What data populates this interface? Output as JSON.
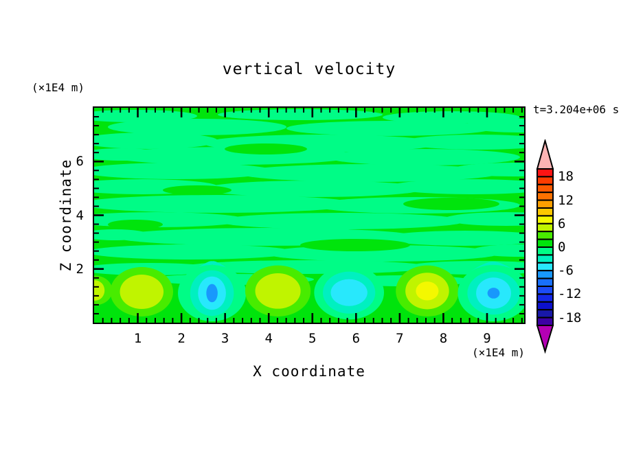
{
  "title": "vertical velocity",
  "annotations": {
    "time_label": "t=3.204e+06 s"
  },
  "x_axis": {
    "label": "X coordinate",
    "unit": "(×1E4 m)",
    "tick_labels": [
      "1",
      "2",
      "3",
      "4",
      "5",
      "6",
      "7",
      "8",
      "9"
    ]
  },
  "y_axis": {
    "label": "Z coordinate",
    "unit": "(×1E4 m)",
    "tick_labels": [
      "6",
      "4",
      "2"
    ]
  },
  "colorbar": {
    "tick_labels": [
      "18",
      "12",
      "6",
      "0",
      "-6",
      "-12",
      "-18"
    ],
    "over_color": "#fcb4b4",
    "under_color": "#b400b4",
    "cells": [
      {
        "from": 18,
        "to": 20,
        "color": "#fc1414"
      },
      {
        "from": 16,
        "to": 18,
        "color": "#fc3c00"
      },
      {
        "from": 14,
        "to": 16,
        "color": "#fc5a00"
      },
      {
        "from": 12,
        "to": 14,
        "color": "#fc7200"
      },
      {
        "from": 10,
        "to": 12,
        "color": "#fca000"
      },
      {
        "from": 8,
        "to": 10,
        "color": "#fcc800"
      },
      {
        "from": 6,
        "to": 8,
        "color": "#f4f800"
      },
      {
        "from": 4,
        "to": 6,
        "color": "#c0f400"
      },
      {
        "from": 2,
        "to": 4,
        "color": "#48ec00"
      },
      {
        "from": 0,
        "to": 2,
        "color": "#00e40c"
      },
      {
        "from": -2,
        "to": 0,
        "color": "#00fc86"
      },
      {
        "from": -4,
        "to": -2,
        "color": "#00f0c0"
      },
      {
        "from": -6,
        "to": -4,
        "color": "#28e8fc"
      },
      {
        "from": -8,
        "to": -6,
        "color": "#1898fc"
      },
      {
        "from": -10,
        "to": -8,
        "color": "#1870fc"
      },
      {
        "from": -12,
        "to": -10,
        "color": "#1c4cf8"
      },
      {
        "from": -14,
        "to": -12,
        "color": "#1428e8"
      },
      {
        "from": -16,
        "to": -14,
        "color": "#0c10cc"
      },
      {
        "from": -18,
        "to": -16,
        "color": "#1818a8"
      },
      {
        "from": -20,
        "to": -18,
        "color": "#3c00a4"
      }
    ]
  },
  "chart_data": {
    "type": "heatmap",
    "title": "vertical velocity",
    "xlabel": "X coordinate",
    "ylabel": "Z coordinate",
    "x_unit": "×1E4 m",
    "z_unit": "×1E4 m",
    "time_annotation": "t=3.204e+06 s",
    "x_range": [
      0,
      9.85
    ],
    "z_range": [
      0,
      8
    ],
    "x_ticks": [
      1,
      2,
      3,
      4,
      5,
      6,
      7,
      8,
      9
    ],
    "z_ticks": [
      2,
      4,
      6
    ],
    "x_minor_step": 0.2,
    "z_minor_interval": 0.3333,
    "contour_interval": 2,
    "level_labels": [
      18,
      12,
      6,
      0,
      -6,
      -12,
      -18
    ],
    "background_bands": "alternating wavy horizontal streaks of level 0..2 (green) and -2..0 (spring green) filling the domain above z≈2",
    "features": [
      {
        "type": "updraft",
        "x": 1.09,
        "z": 1.15,
        "peak": 6,
        "rings": [
          {
            "level": 2,
            "rx": 0.72,
            "ry": 0.92
          },
          {
            "level": 4,
            "rx": 0.5,
            "ry": 0.64
          }
        ]
      },
      {
        "type": "downdraft",
        "x": 2.7,
        "z": 1.1,
        "peak": -8,
        "rings": [
          {
            "level": -2,
            "rx": 0.78,
            "ry": 1.05
          },
          {
            "level": -4,
            "rx": 0.5,
            "ry": 0.85
          },
          {
            "level": -6,
            "rx": 0.32,
            "ry": 0.62
          },
          {
            "level": -8,
            "rx": 0.13,
            "ry": 0.34
          }
        ]
      },
      {
        "type": "updraft",
        "x": 4.21,
        "z": 1.18,
        "peak": 6,
        "rings": [
          {
            "level": 2,
            "rx": 0.75,
            "ry": 0.95
          },
          {
            "level": 4,
            "rx": 0.52,
            "ry": 0.66
          }
        ]
      },
      {
        "type": "downdraft",
        "x": 5.84,
        "z": 1.12,
        "peak": -6,
        "rings": [
          {
            "level": -2,
            "rx": 0.8,
            "ry": 1.0
          },
          {
            "level": -4,
            "rx": 0.6,
            "ry": 0.78
          },
          {
            "level": -6,
            "rx": 0.42,
            "ry": 0.5
          }
        ]
      },
      {
        "type": "updraft",
        "x": 7.63,
        "z": 1.18,
        "peak": 8,
        "rings": [
          {
            "level": 2,
            "rx": 0.72,
            "ry": 0.95
          },
          {
            "level": 4,
            "rx": 0.5,
            "ry": 0.68
          },
          {
            "level": 6,
            "rx": 0.26,
            "ry": 0.35
          }
        ]
      },
      {
        "type": "downdraft",
        "x": 9.15,
        "z": 1.1,
        "peak": -8,
        "rings": [
          {
            "level": -2,
            "rx": 0.82,
            "ry": 1.05
          },
          {
            "level": -4,
            "rx": 0.6,
            "ry": 0.8
          },
          {
            "level": -6,
            "rx": 0.4,
            "ry": 0.58
          },
          {
            "level": -8,
            "rx": 0.14,
            "ry": 0.2
          }
        ]
      },
      {
        "type": "updraft",
        "x": 0.02,
        "z": 1.2,
        "peak": 4,
        "rings": [
          {
            "level": 2,
            "rx": 0.4,
            "ry": 0.55
          },
          {
            "level": 4,
            "rx": 0.22,
            "ry": 0.38
          }
        ]
      }
    ]
  }
}
